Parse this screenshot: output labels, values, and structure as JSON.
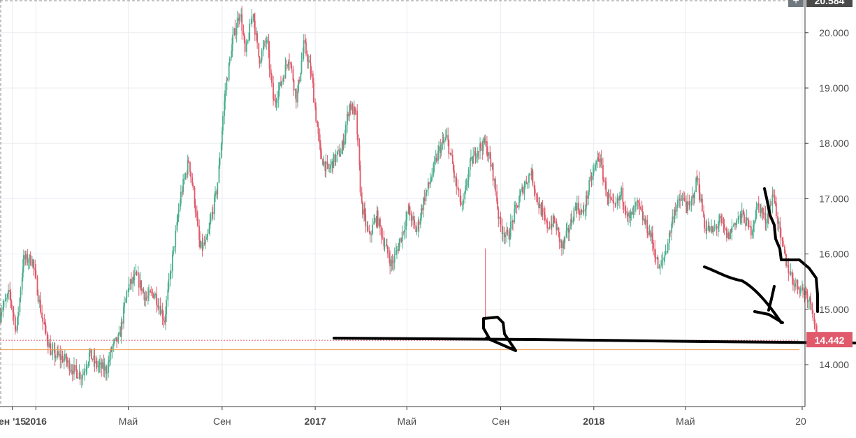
{
  "chart_data": {
    "type": "candlestick",
    "title": "",
    "xlabel": "",
    "ylabel": "",
    "x_range": [
      "2015-11-15",
      "2018-10-01"
    ],
    "ylim": [
      13.2,
      20.6
    ],
    "grid": true,
    "y_ticks": [
      "14.000",
      "15.000",
      "16.000",
      "17.000",
      "18.000",
      "19.000",
      "20.000"
    ],
    "x_ticks": [
      {
        "label": "ен '15",
        "date": "2015-12-01",
        "bold": true
      },
      {
        "label": "2016",
        "date": "2016-01-01",
        "bold": true
      },
      {
        "label": "Май",
        "date": "2016-05-01",
        "bold": false
      },
      {
        "label": "Сен",
        "date": "2016-09-01",
        "bold": false
      },
      {
        "label": "2017",
        "date": "2017-01-01",
        "bold": true
      },
      {
        "label": "Май",
        "date": "2017-05-01",
        "bold": false
      },
      {
        "label": "Сен",
        "date": "2017-09-01",
        "bold": false
      },
      {
        "label": "2018",
        "date": "2018-01-01",
        "bold": true
      },
      {
        "label": "Май",
        "date": "2018-05-01",
        "bold": false
      },
      {
        "label": "20",
        "date": "2018-10-01",
        "bold": false
      }
    ],
    "price_path": [
      [
        "2015-11-15",
        14.9
      ],
      [
        "2015-11-28",
        15.3
      ],
      [
        "2015-12-07",
        14.6
      ],
      [
        "2015-12-16",
        15.9
      ],
      [
        "2015-12-28",
        15.9
      ],
      [
        "2016-01-10",
        14.8
      ],
      [
        "2016-01-22",
        14.2
      ],
      [
        "2016-02-08",
        14.1
      ],
      [
        "2016-02-20",
        13.9
      ],
      [
        "2016-03-02",
        13.8
      ],
      [
        "2016-03-12",
        14.2
      ],
      [
        "2016-03-20",
        14.0
      ],
      [
        "2016-04-03",
        13.9
      ],
      [
        "2016-04-10",
        14.3
      ],
      [
        "2016-04-20",
        14.5
      ],
      [
        "2016-05-01",
        15.4
      ],
      [
        "2016-05-12",
        15.6
      ],
      [
        "2016-05-25",
        15.2
      ],
      [
        "2016-06-05",
        15.3
      ],
      [
        "2016-06-18",
        14.8
      ],
      [
        "2016-06-28",
        15.9
      ],
      [
        "2016-07-10",
        17.1
      ],
      [
        "2016-07-20",
        17.7
      ],
      [
        "2016-07-28",
        16.9
      ],
      [
        "2016-08-03",
        16.1
      ],
      [
        "2016-08-12",
        16.2
      ],
      [
        "2016-08-26",
        17.2
      ],
      [
        "2016-09-06",
        19.0
      ],
      [
        "2016-09-16",
        19.9
      ],
      [
        "2016-09-25",
        20.4
      ],
      [
        "2016-10-02",
        19.6
      ],
      [
        "2016-10-12",
        20.4
      ],
      [
        "2016-10-20",
        19.5
      ],
      [
        "2016-10-30",
        19.9
      ],
      [
        "2016-11-08",
        18.7
      ],
      [
        "2016-11-18",
        19.1
      ],
      [
        "2016-11-28",
        19.6
      ],
      [
        "2016-12-08",
        18.8
      ],
      [
        "2016-12-18",
        19.8
      ],
      [
        "2016-12-28",
        19.2
      ],
      [
        "2017-01-08",
        17.8
      ],
      [
        "2017-01-18",
        17.5
      ],
      [
        "2017-01-26",
        17.7
      ],
      [
        "2017-02-06",
        17.9
      ],
      [
        "2017-02-15",
        18.7
      ],
      [
        "2017-02-24",
        18.5
      ],
      [
        "2017-03-03",
        16.9
      ],
      [
        "2017-03-13",
        16.3
      ],
      [
        "2017-03-23",
        16.7
      ],
      [
        "2017-04-02",
        16.2
      ],
      [
        "2017-04-12",
        15.8
      ],
      [
        "2017-04-24",
        16.3
      ],
      [
        "2017-05-04",
        16.8
      ],
      [
        "2017-05-14",
        16.4
      ],
      [
        "2017-05-24",
        17.0
      ],
      [
        "2017-06-03",
        17.4
      ],
      [
        "2017-06-13",
        17.9
      ],
      [
        "2017-06-23",
        18.1
      ],
      [
        "2017-07-03",
        17.4
      ],
      [
        "2017-07-13",
        16.8
      ],
      [
        "2017-07-23",
        17.6
      ],
      [
        "2017-08-02",
        17.9
      ],
      [
        "2017-08-12",
        18.0
      ],
      [
        "2017-08-22",
        17.5
      ],
      [
        "2017-09-01",
        16.5
      ],
      [
        "2017-09-11",
        16.3
      ],
      [
        "2017-09-21",
        16.8
      ],
      [
        "2017-10-01",
        17.2
      ],
      [
        "2017-10-11",
        17.5
      ],
      [
        "2017-10-21",
        16.9
      ],
      [
        "2017-11-01",
        16.5
      ],
      [
        "2017-11-11",
        16.6
      ],
      [
        "2017-11-21",
        16.1
      ],
      [
        "2017-12-01",
        16.5
      ],
      [
        "2017-12-09",
        16.9
      ],
      [
        "2017-12-18",
        16.7
      ],
      [
        "2017-12-28",
        17.3
      ],
      [
        "2018-01-08",
        17.8
      ],
      [
        "2018-01-18",
        17.1
      ],
      [
        "2018-01-28",
        16.8
      ],
      [
        "2018-02-07",
        17.1
      ],
      [
        "2018-02-17",
        16.6
      ],
      [
        "2018-02-27",
        16.9
      ],
      [
        "2018-03-08",
        16.6
      ],
      [
        "2018-03-18",
        16.3
      ],
      [
        "2018-03-28",
        15.7
      ],
      [
        "2018-04-07",
        16.1
      ],
      [
        "2018-04-17",
        16.8
      ],
      [
        "2018-04-27",
        17.0
      ],
      [
        "2018-05-07",
        16.8
      ],
      [
        "2018-05-17",
        17.4
      ],
      [
        "2018-05-27",
        16.5
      ],
      [
        "2018-06-06",
        16.4
      ],
      [
        "2018-06-16",
        16.6
      ],
      [
        "2018-06-26",
        16.3
      ],
      [
        "2018-07-06",
        16.6
      ],
      [
        "2018-07-16",
        16.7
      ],
      [
        "2018-07-26",
        16.4
      ],
      [
        "2018-08-05",
        16.9
      ],
      [
        "2018-08-15",
        16.6
      ],
      [
        "2018-08-25",
        17.1
      ],
      [
        "2018-09-04",
        16.2
      ],
      [
        "2018-09-12",
        15.8
      ],
      [
        "2018-09-20",
        15.5
      ],
      [
        "2018-09-28",
        15.4
      ],
      [
        "2018-10-06",
        15.3
      ],
      [
        "2018-10-14",
        15.1
      ],
      [
        "2018-10-21",
        14.44
      ]
    ],
    "current_price_label": "14.442",
    "top_price_label": "20.584",
    "horizontal_lines": [
      {
        "value": 14.44,
        "color": "#e05a6b",
        "style": "dotted"
      },
      {
        "value": 14.27,
        "color": "#f29a4a",
        "style": "solid"
      }
    ],
    "colors": {
      "up": "#4caf8f",
      "down": "#e05a6b",
      "grid": "#e9edf2",
      "axis": "#3a3a3a",
      "badge": "#e05a6b",
      "hand_drawn": "#000000"
    }
  }
}
